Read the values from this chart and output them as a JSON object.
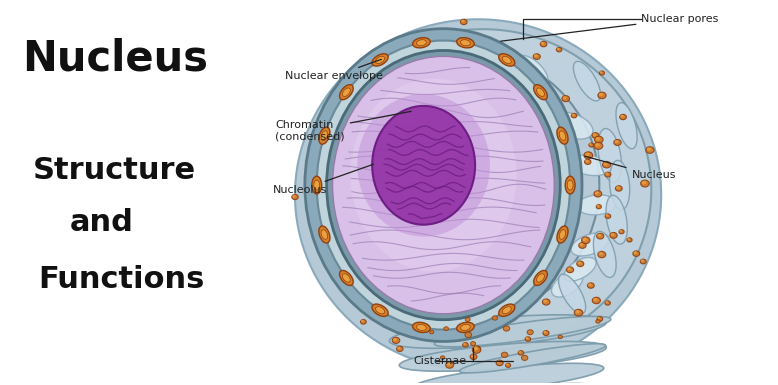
{
  "title_line1": "Nucleus",
  "title_line2": "Structure",
  "title_line3": "and",
  "title_line4": "Functions",
  "bg_color": "#ffffff",
  "text_color": "#111111",
  "labels": {
    "nuclear_envelope": "Nuclear envelope",
    "chromatin": "Chromatin\n(condensed)",
    "nucleolus": "Nucleolus",
    "nuclear_pores": "Nuclear pores",
    "nucleus": "Nucleus",
    "cisternae": "Cisternae"
  },
  "colors": {
    "outer_er_fill": "#b8ccd8",
    "outer_er_edge": "#8aaabb",
    "er_channel_fill": "#c8d8e4",
    "er_channel_edge": "#7a9aaa",
    "perinuclear_fill": "#9ab8c8",
    "perinuclear_edge": "#6a8a9a",
    "nuc_env_fill": "#7a9aaa",
    "nuc_env_edge": "#4a6a7a",
    "nucleoplasm_fill": "#d0b8e0",
    "nucleoplasm_edge": "#9a7aaa",
    "nucleolus_fill": "#9b45b0",
    "nucleolus_edge": "#6a2a80",
    "chromatin_color": "#a080b8",
    "pore_outer": "#d4872a",
    "pore_inner": "#e8a840",
    "pore_edge": "#a05010",
    "dot_color": "#d07828",
    "dot_edge": "#a05010",
    "cisternae_fill": "#b0c8d8",
    "cisternae_edge": "#7a9aaa",
    "ann_color": "#222222"
  }
}
